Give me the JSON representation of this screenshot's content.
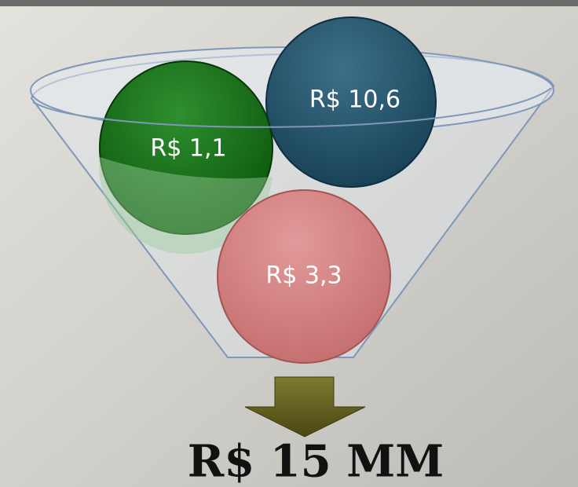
{
  "funnel": {
    "items": [
      {
        "label": "R$ 10,6"
      },
      {
        "label": "R$ 1,1"
      },
      {
        "label": "R$ 3,3"
      }
    ]
  },
  "total": "R$ 15 MM"
}
